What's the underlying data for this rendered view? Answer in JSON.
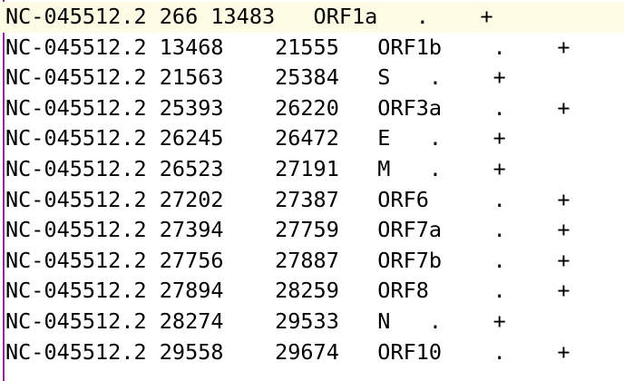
{
  "editor": {
    "colors": {
      "background": "#ffffff",
      "current_line": "#fdfbe3",
      "gutter_marker": "#8a2a92",
      "text": "#000000"
    },
    "current_line_index": 0,
    "lines": [
      "NC-045512.2 266 13483   ORF1a   .    +",
      "NC-045512.2 13468    21555   ORF1b    .    +",
      "NC-045512.2 21563    25384   S   .    +",
      "NC-045512.2 25393    26220   ORF3a    .    +",
      "NC-045512.2 26245    26472   E   .    +",
      "NC-045512.2 26523    27191   M   .    +",
      "NC-045512.2 27202    27387   ORF6     .    +",
      "NC-045512.2 27394    27759   ORF7a    .    +",
      "NC-045512.2 27756    27887   ORF7b    .    +",
      "NC-045512.2 27894    28259   ORF8     .    +",
      "NC-045512.2 28274    29533   N   .    +",
      "NC-045512.2 29558    29674   ORF10    .    +"
    ]
  }
}
